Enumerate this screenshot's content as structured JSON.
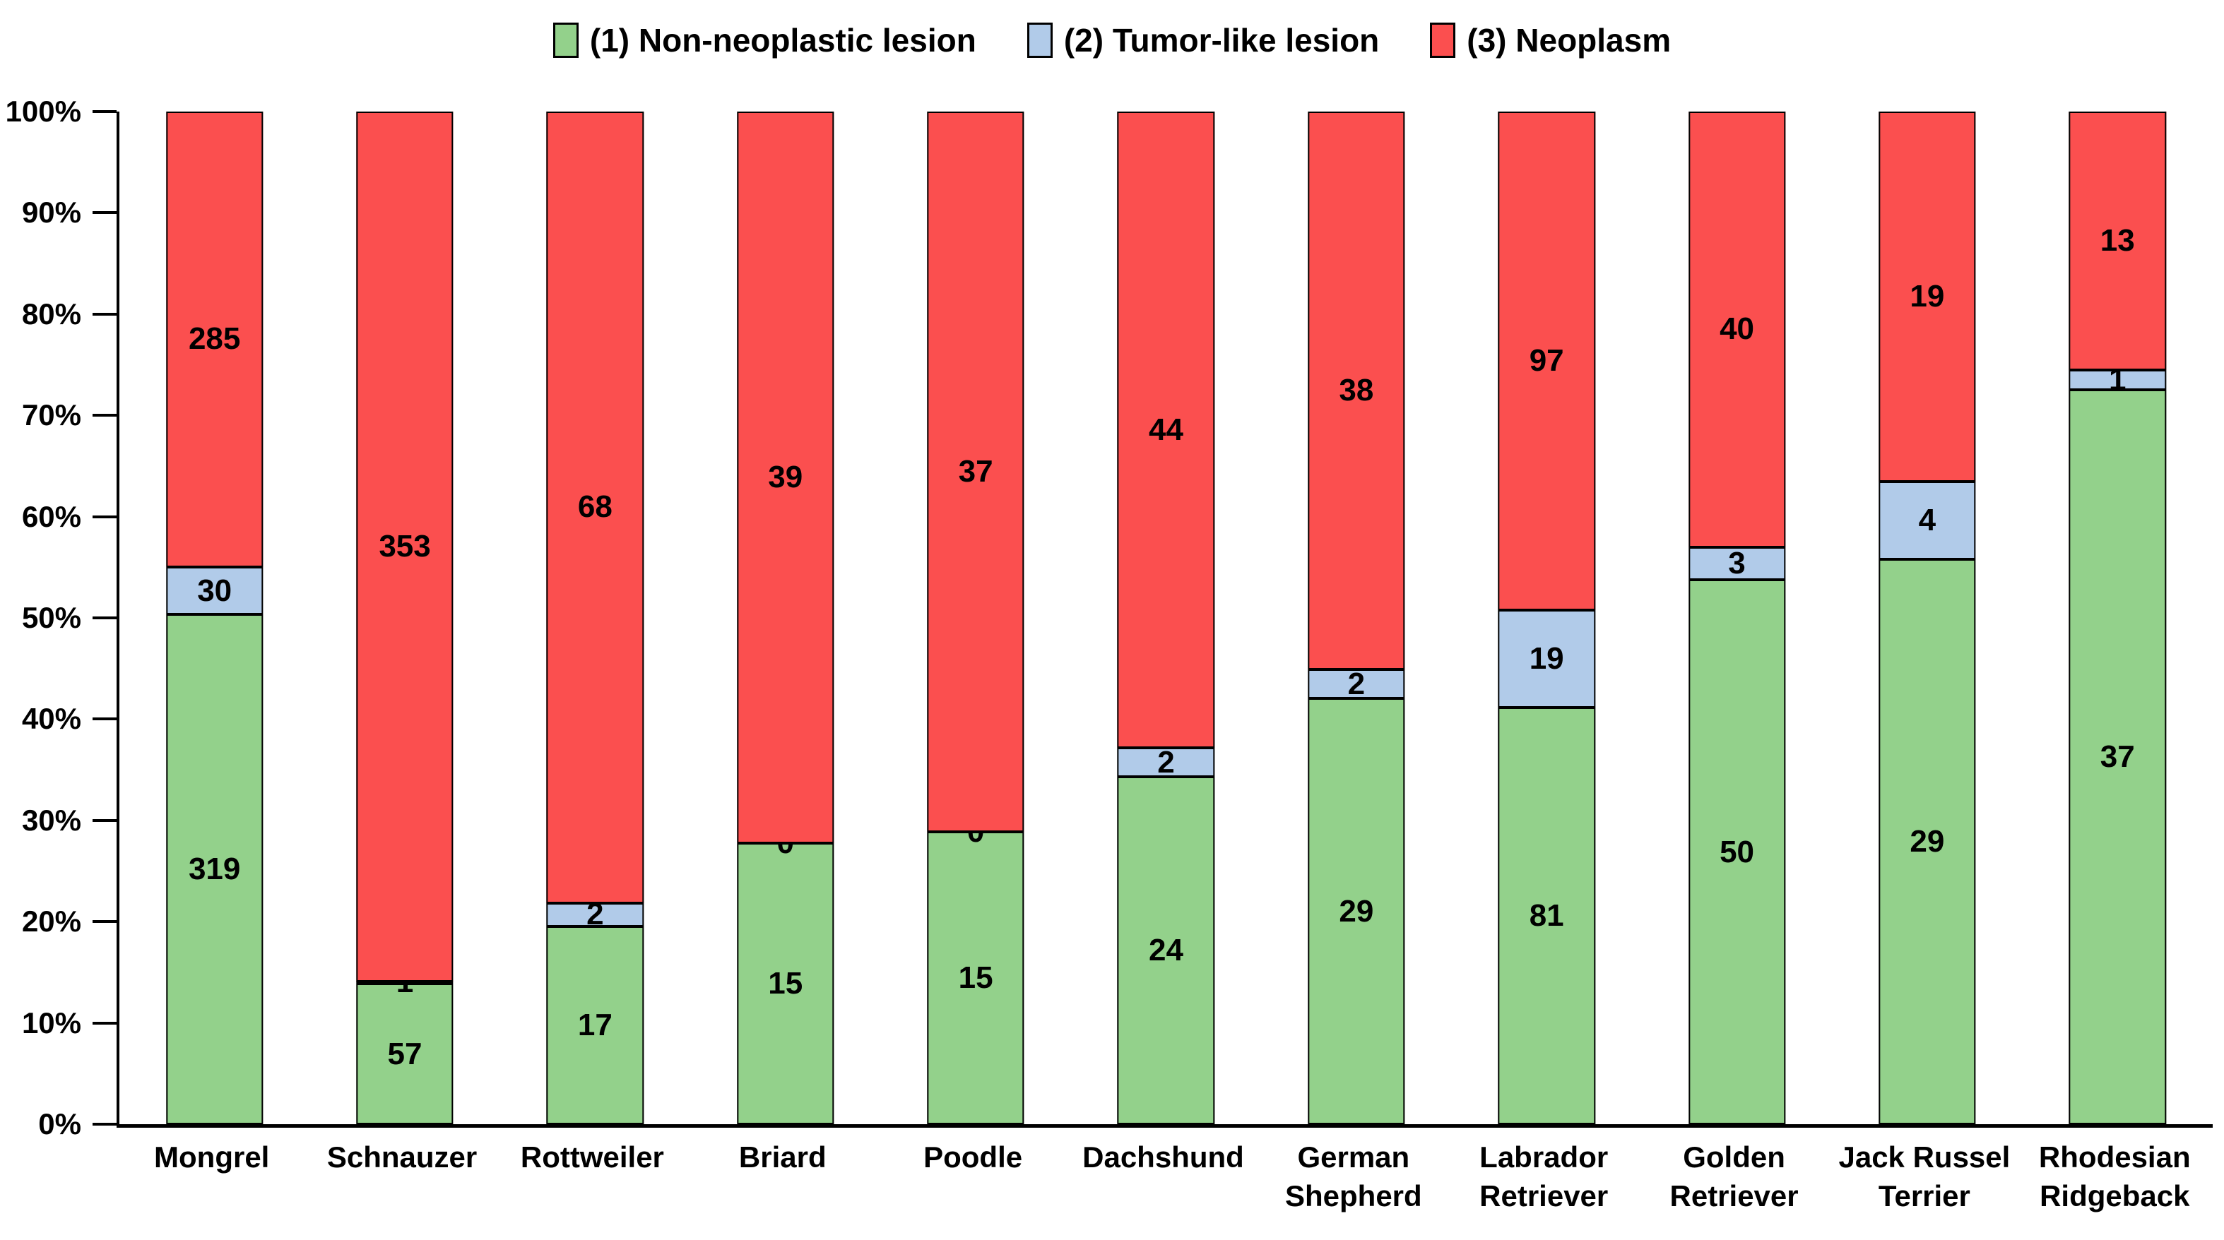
{
  "chart_data": {
    "type": "bar",
    "stacked": "percent",
    "title": "",
    "xlabel": "",
    "ylabel": "",
    "grid": false,
    "legend_position": "top",
    "categories": [
      "Mongrel",
      "Schnauzer",
      "Rottweiler",
      "Briard",
      "Poodle",
      "Dachshund",
      "German Shepherd",
      "Labrador Retriever",
      "Golden Retriever",
      "Jack Russel Terrier",
      "Rhodesian Ridgeback"
    ],
    "series": [
      {
        "name": "(1) Non-neoplastic lesion",
        "color": "#93D18B",
        "values": [
          319,
          57,
          17,
          15,
          15,
          24,
          29,
          81,
          50,
          29,
          37
        ]
      },
      {
        "name": "(2) Tumor-like lesion",
        "color": "#B1CBE9",
        "values": [
          30,
          1,
          2,
          0,
          0,
          2,
          2,
          19,
          3,
          4,
          1
        ]
      },
      {
        "name": "(3) Neoplasm",
        "color": "#FB4F4F",
        "values": [
          285,
          353,
          68,
          39,
          37,
          44,
          38,
          97,
          40,
          19,
          13
        ]
      }
    ],
    "y_axis": {
      "min": 0,
      "max": 100,
      "unit": "%",
      "ticks": [
        "100%",
        "90%",
        "80%",
        "70%",
        "60%",
        "50%",
        "40%",
        "30%",
        "20%",
        "10%",
        "0%"
      ]
    },
    "colors": {
      "axis": "#000000",
      "background": "#FFFFFF",
      "label_text": "#000000"
    }
  }
}
